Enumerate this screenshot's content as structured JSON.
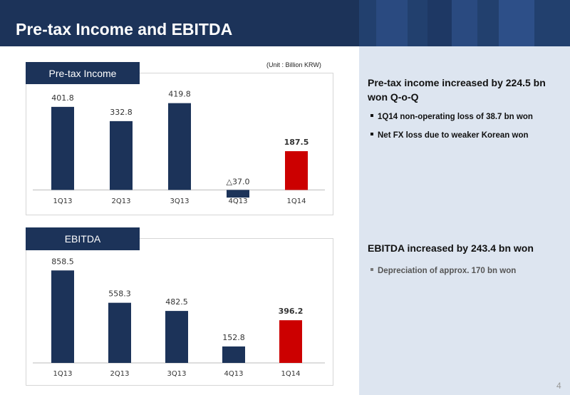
{
  "header": {
    "title": "Pre-tax Income and EBITDA"
  },
  "unit_label": "(Unit : Billion KRW)",
  "charts": {
    "pretax": {
      "tab_label": "Pre-tax Income"
    },
    "ebitda": {
      "tab_label": "EBITDA"
    }
  },
  "chart_data": [
    {
      "type": "bar",
      "title": "Pre-tax Income",
      "categories": [
        "1Q13",
        "2Q13",
        "3Q13",
        "4Q13",
        "1Q14"
      ],
      "values": [
        401.8,
        332.8,
        419.8,
        -37.0,
        187.5
      ],
      "value_labels": [
        "401.8",
        "332.8",
        "419.8",
        "△37.0",
        "187.5"
      ],
      "bar_colors": [
        "#1c3359",
        "#1c3359",
        "#1c3359",
        "#1c3359",
        "#cc0000"
      ],
      "highlight_index": 4,
      "ylim": [
        -40,
        460
      ],
      "grid": false
    },
    {
      "type": "bar",
      "title": "EBITDA",
      "categories": [
        "1Q13",
        "2Q13",
        "3Q13",
        "4Q13",
        "1Q14"
      ],
      "values": [
        858.5,
        558.3,
        482.5,
        152.8,
        396.2
      ],
      "value_labels": [
        "858.5",
        "558.3",
        "482.5",
        "152.8",
        "396.2"
      ],
      "bar_colors": [
        "#1c3359",
        "#1c3359",
        "#1c3359",
        "#1c3359",
        "#cc0000"
      ],
      "highlight_index": 4,
      "ylim": [
        0,
        920
      ],
      "grid": false
    }
  ],
  "right_panel": {
    "pretax_heading": "Pre-tax income increased by 224.5 bn won Q-o-Q",
    "pretax_bullets": [
      "1Q14 non-operating loss of 38.7 bn won",
      "Net FX loss due to weaker Korean won"
    ],
    "ebitda_heading": "EBITDA increased by 243.4 bn won",
    "ebitda_bullets": [
      "Depreciation of approx. 170 bn won"
    ]
  },
  "page_number": "4",
  "colors": {
    "navy": "#1c3359",
    "highlight": "#cc0000",
    "panel_bg": "#dde5f0"
  }
}
